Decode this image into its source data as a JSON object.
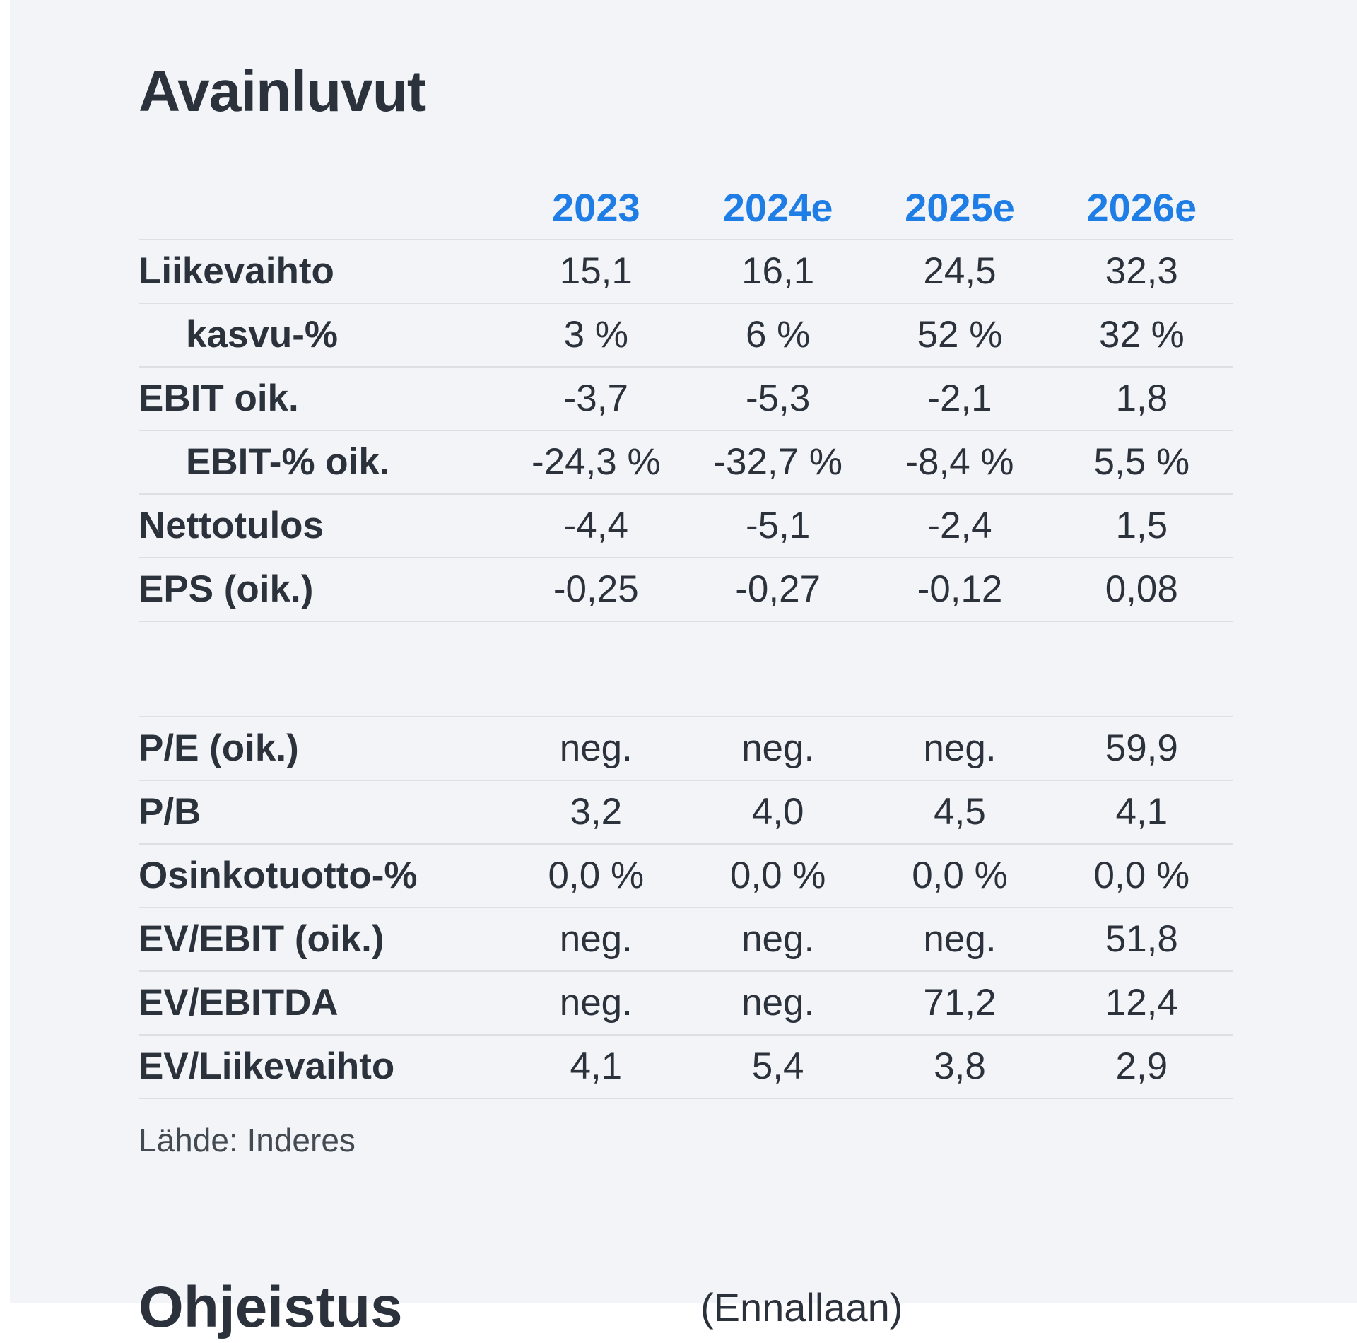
{
  "title": "Avainluvut",
  "columns": [
    "2023",
    "2024e",
    "2025e",
    "2026e"
  ],
  "key_figures": [
    {
      "label": "Liikevaihto",
      "indent": false,
      "values": [
        "15,1",
        "16,1",
        "24,5",
        "32,3"
      ]
    },
    {
      "label": "kasvu-%",
      "indent": true,
      "values": [
        "3 %",
        "6 %",
        "52 %",
        "32 %"
      ]
    },
    {
      "label": "EBIT oik.",
      "indent": false,
      "values": [
        "-3,7",
        "-5,3",
        "-2,1",
        "1,8"
      ]
    },
    {
      "label": "EBIT-% oik.",
      "indent": true,
      "values": [
        "-24,3 %",
        "-32,7 %",
        "-8,4 %",
        "5,5 %"
      ]
    },
    {
      "label": "Nettotulos",
      "indent": false,
      "values": [
        "-4,4",
        "-5,1",
        "-2,4",
        "1,5"
      ]
    },
    {
      "label": "EPS (oik.)",
      "indent": false,
      "values": [
        "-0,25",
        "-0,27",
        "-0,12",
        "0,08"
      ]
    }
  ],
  "valuation": [
    {
      "label": "P/E (oik.)",
      "values": [
        "neg.",
        "neg.",
        "neg.",
        "59,9"
      ]
    },
    {
      "label": "P/B",
      "values": [
        "3,2",
        "4,0",
        "4,5",
        "4,1"
      ]
    },
    {
      "label": "Osinkotuotto-%",
      "values": [
        "0,0 %",
        "0,0 %",
        "0,0 %",
        "0,0 %"
      ]
    },
    {
      "label": "EV/EBIT (oik.)",
      "values": [
        "neg.",
        "neg.",
        "neg.",
        "51,8"
      ]
    },
    {
      "label": "EV/EBITDA",
      "values": [
        "neg.",
        "neg.",
        "71,2",
        "12,4"
      ]
    },
    {
      "label": "EV/Liikevaihto",
      "values": [
        "4,1",
        "5,4",
        "3,8",
        "2,9"
      ]
    }
  ],
  "source": "Lähde: Inderes",
  "next_section": {
    "heading": "Ohjeistus",
    "note": "(Ennallaan)"
  }
}
